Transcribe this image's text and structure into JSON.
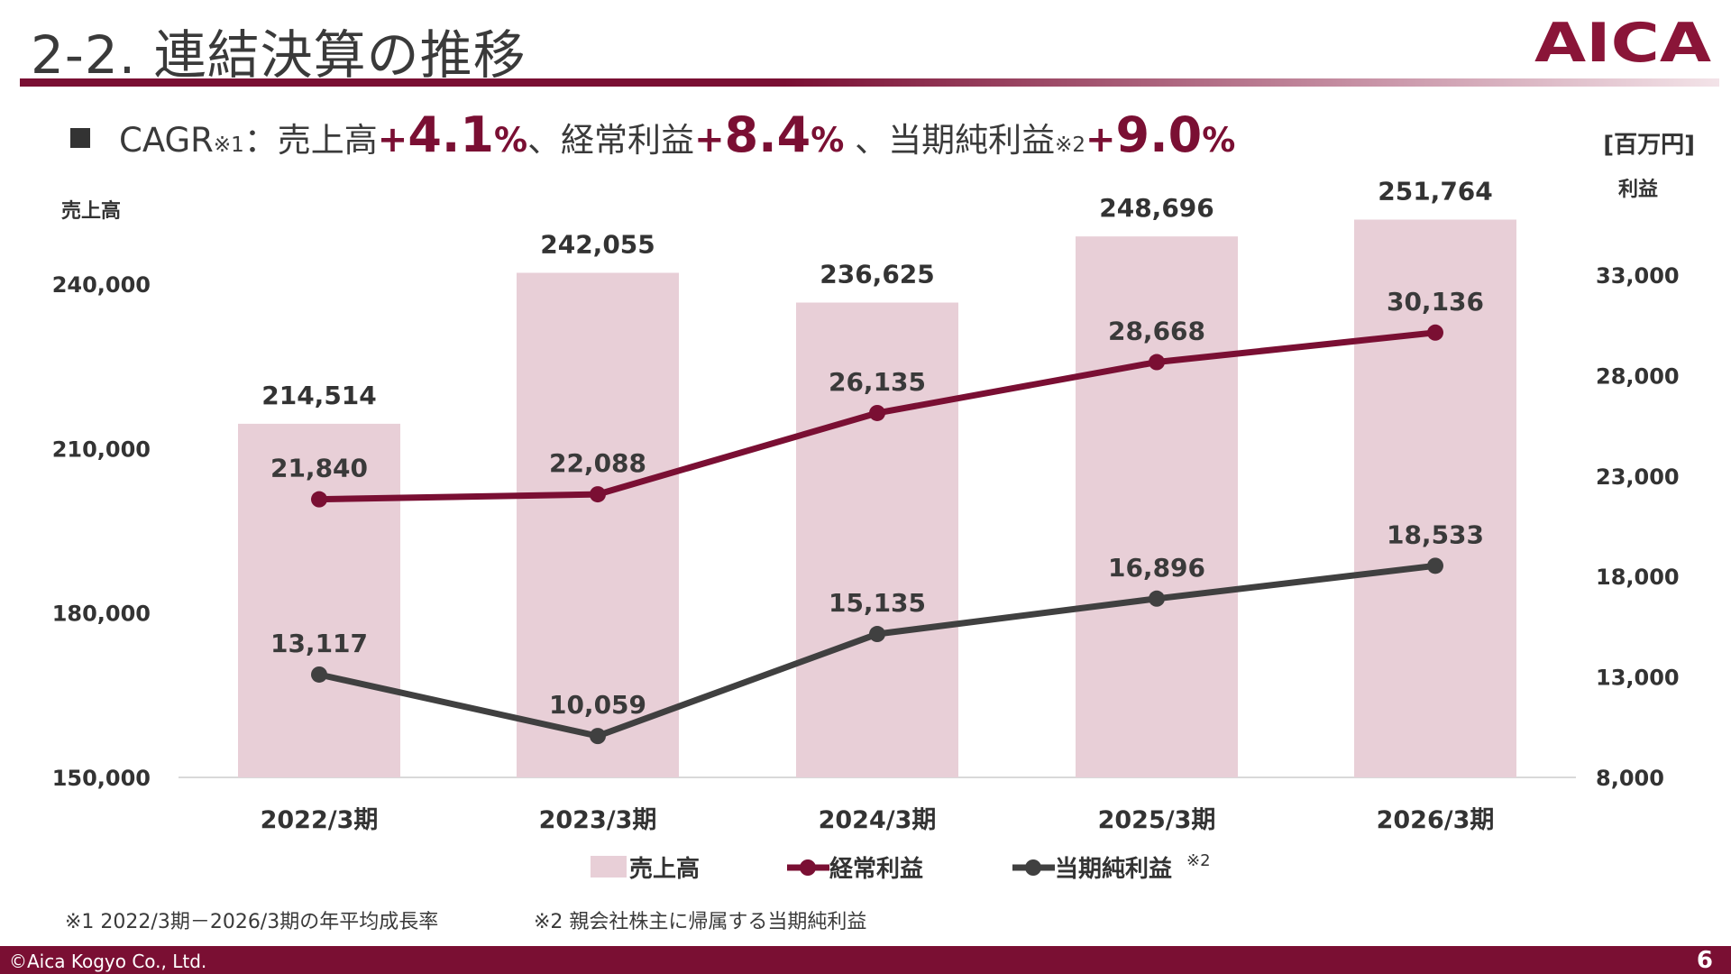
{
  "header": {
    "title": "2-2. 連結決算の推移",
    "logo_text": "AICA",
    "brand_color": "#7a0f33"
  },
  "cagr": {
    "prefix": "CAGR",
    "note1": "※1",
    "colon": "：売上高",
    "sign1": "+",
    "value1": "4.1",
    "pct1": "%",
    "sep1": "、経常利益",
    "sign2": "+",
    "value2": "8.4",
    "pct2": "%",
    "sep2": " 、当期純利益",
    "note2": "※2",
    "sign3": "+",
    "value3": "9.0",
    "pct3": "%"
  },
  "unit_label": "[百万円]",
  "chart_data": {
    "type": "bar",
    "categories": [
      "2022/3期",
      "2023/3期",
      "2024/3期",
      "2025/3期",
      "2026/3期"
    ],
    "left_axis": {
      "label": "売上高",
      "ylim": [
        150000,
        240000
      ],
      "ticks": [
        150000,
        180000,
        210000,
        240000
      ],
      "tick_labels": [
        "150,000",
        "180,000",
        "210,000",
        "240,000"
      ]
    },
    "right_axis": {
      "label": "利益",
      "ylim": [
        8000,
        33000
      ],
      "ticks": [
        8000,
        13000,
        18000,
        23000,
        28000,
        33000
      ],
      "tick_labels": [
        "8,000",
        "13,000",
        "18,000",
        "23,000",
        "28,000",
        "33,000"
      ]
    },
    "series": [
      {
        "name": "売上高",
        "kind": "bar",
        "axis": "left",
        "color": "#e8cfd7",
        "values": [
          214514,
          242055,
          236625,
          248696,
          251764
        ],
        "labels": [
          "214,514",
          "242,055",
          "236,625",
          "248,696",
          "251,764"
        ]
      },
      {
        "name": "経常利益",
        "kind": "line",
        "axis": "right",
        "color": "#7a0f33",
        "values": [
          21840,
          22088,
          26135,
          28668,
          30136
        ],
        "labels": [
          "21,840",
          "22,088",
          "26,135",
          "28,668",
          "30,136"
        ]
      },
      {
        "name": "当期純利益",
        "note": "※2",
        "kind": "line",
        "axis": "right",
        "color": "#404040",
        "values": [
          13117,
          10059,
          15135,
          16896,
          18533
        ],
        "labels": [
          "13,117",
          "10,059",
          "15,135",
          "16,896",
          "18,533"
        ]
      }
    ],
    "legend_position": "bottom",
    "grid": false
  },
  "footnotes": {
    "note1": "※1 2022/3期－2026/3期の年平均成長率",
    "note2": "※2 親会社株主に帰属する当期純利益"
  },
  "footer": {
    "copyright": "©Aica Kogyo Co., Ltd.",
    "page": "6"
  }
}
